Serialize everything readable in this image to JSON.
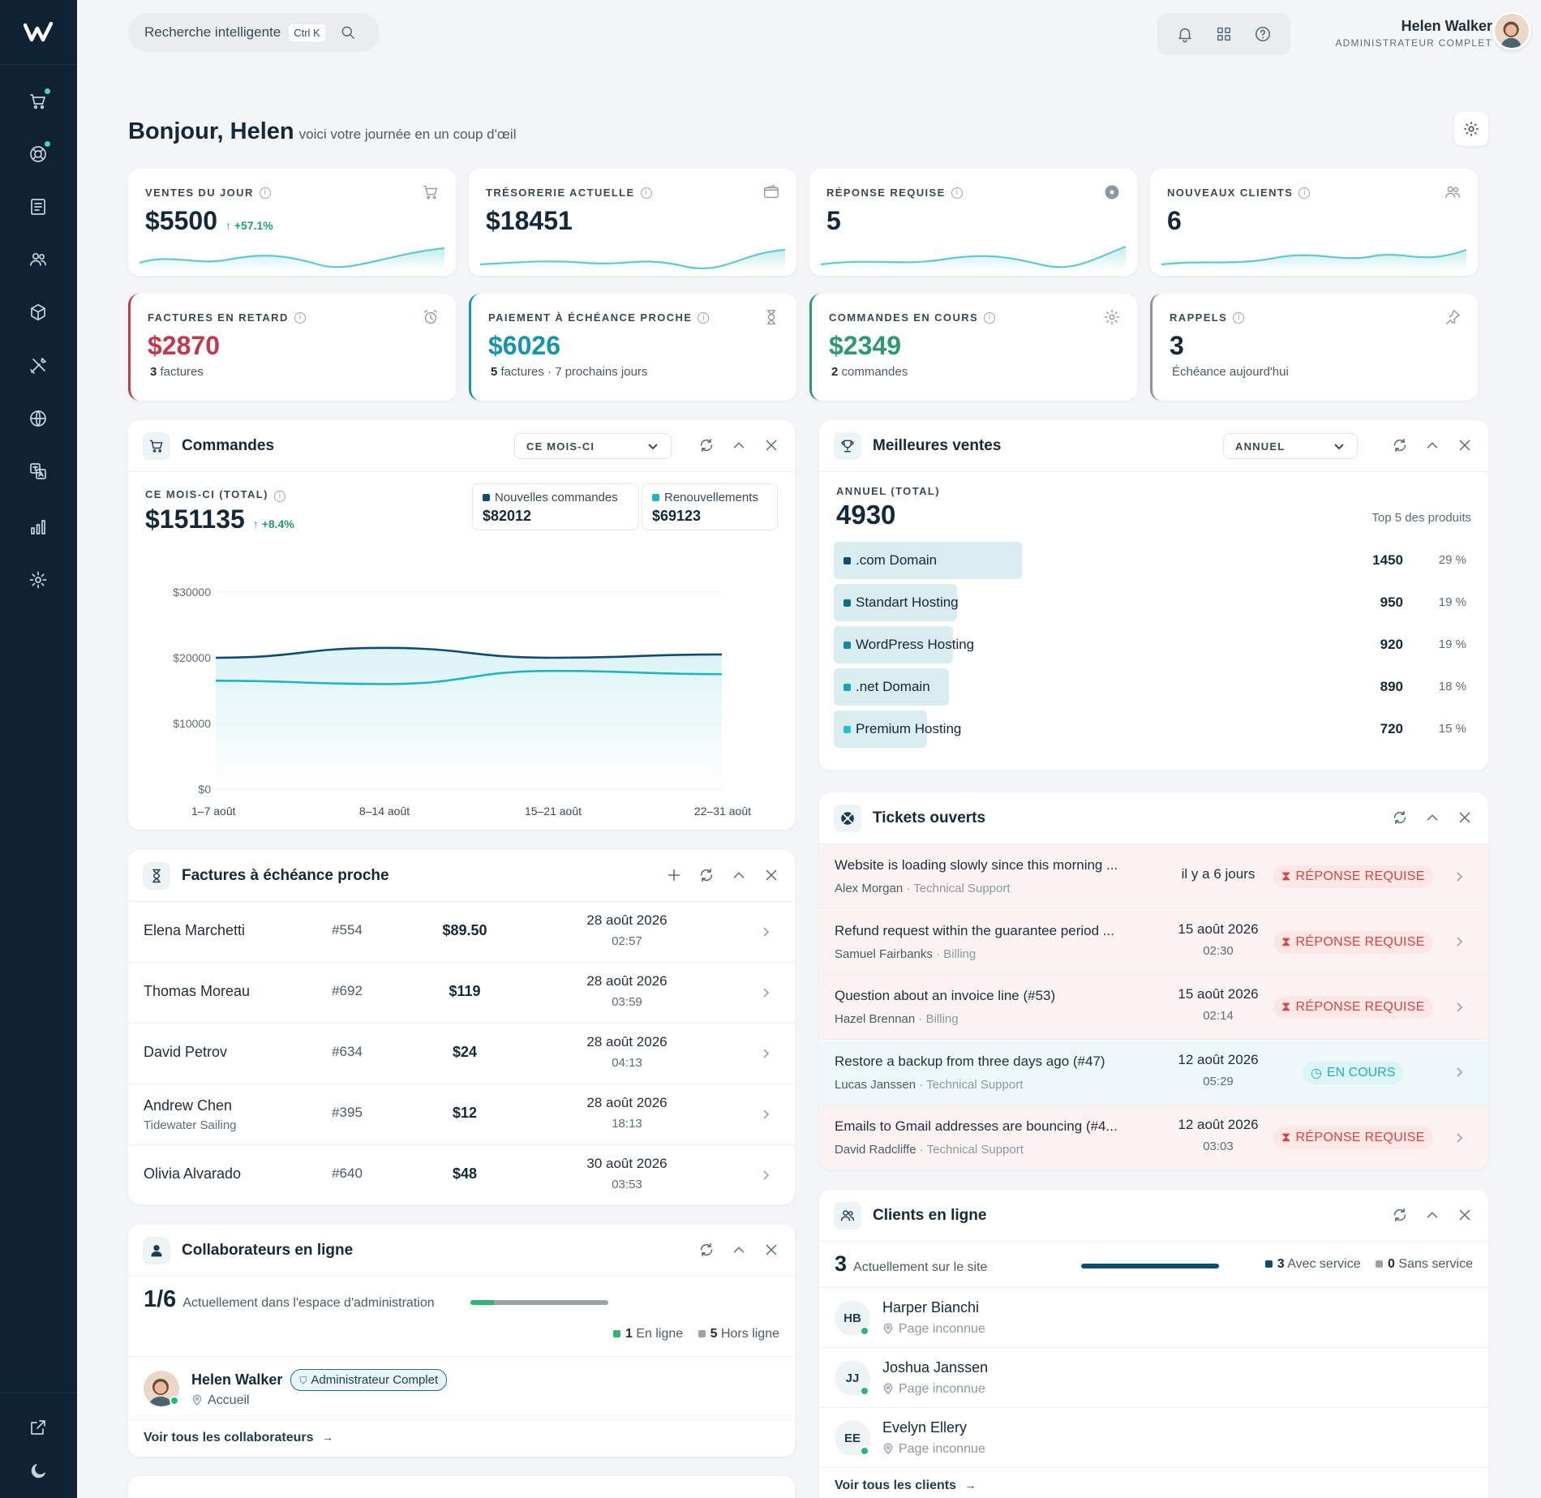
{
  "topbar": {
    "search_label": "Recherche intelligente",
    "search_shortcut": "Ctrl K",
    "user_name": "Helen Walker",
    "user_role": "ADMINISTRATEUR COMPLET"
  },
  "greeting": {
    "title": "Bonjour, Helen",
    "subtitle": "voici votre journée en un coup d'œil"
  },
  "kpis": [
    {
      "label": "VENTES DU JOUR",
      "value": "$5500",
      "delta": "↑ +57.1%",
      "icon": "cart-icon"
    },
    {
      "label": "TRÉSORERIE ACTUELLE",
      "value": "$18451",
      "icon": "wallet-icon"
    },
    {
      "label": "RÉPONSE REQUISE",
      "value": "5",
      "icon": "lifebuoy-icon"
    },
    {
      "label": "NOUVEAUX CLIENTS",
      "value": "6",
      "icon": "users-icon"
    }
  ],
  "kpis2": [
    {
      "label": "FACTURES EN RETARD",
      "value": "$2870",
      "sub_count": "3",
      "sub_text": " factures",
      "color": "#c0394b",
      "icon": "alarm-icon"
    },
    {
      "label": "PAIEMENT À ÉCHÉANCE PROCHE",
      "value": "$6026",
      "sub_count": "5",
      "sub_text": " factures · 7 prochains jours",
      "color": "#1596a8",
      "icon": "hourglass-icon"
    },
    {
      "label": "COMMANDES EN COURS",
      "value": "$2349",
      "sub_count": "2",
      "sub_text": " commandes",
      "color": "#2b9a6e",
      "icon": "gear-icon"
    },
    {
      "label": "RAPPELS",
      "value": "3",
      "sub_count": "",
      "sub_text": "Échéance aujourd'hui",
      "color": "#8a97a1",
      "icon": "pin-icon"
    }
  ],
  "orders": {
    "title": "Commandes",
    "period": "CE MOIS-CI",
    "total_label": "CE MOIS-CI (TOTAL)",
    "total": "$151135",
    "delta": "↑ +8.4%",
    "legend": [
      {
        "name": "Nouvelles commandes",
        "value": "$82012",
        "color": "#0f4c6e"
      },
      {
        "name": "Renouvellements",
        "value": "$69123",
        "color": "#22b5c0"
      }
    ]
  },
  "chart_data": {
    "type": "line",
    "x": [
      "1–7 août",
      "8–14 août",
      "15–21 août",
      "22–31 août"
    ],
    "yticks": [
      "$30000",
      "$20000",
      "$10000",
      "$0"
    ],
    "ylim": [
      0,
      30000
    ],
    "series": [
      {
        "name": "Nouvelles commandes",
        "values": [
          20000,
          21500,
          20000,
          20500
        ],
        "color": "#0f4c6e"
      },
      {
        "name": "Renouvellements",
        "values": [
          16500,
          16000,
          18000,
          17500
        ],
        "color": "#22b5c0"
      }
    ]
  },
  "bestsellers": {
    "title": "Meilleures ventes",
    "period": "ANNUEL",
    "total_label": "ANNUEL (TOTAL)",
    "total": "4930",
    "top_label": "Top 5 des produits",
    "items": [
      {
        "name": ".com Domain",
        "value": "1450",
        "pct": "29 %",
        "share": 1.0,
        "color": "#0f4c6e"
      },
      {
        "name": "Standart Hosting",
        "value": "950",
        "pct": "19 %",
        "share": 0.655,
        "color": "#146985"
      },
      {
        "name": "WordPress Hosting",
        "value": "920",
        "pct": "19 %",
        "share": 0.634,
        "color": "#1889a0"
      },
      {
        "name": ".net Domain",
        "value": "890",
        "pct": "18 %",
        "share": 0.614,
        "color": "#1ea3b5"
      },
      {
        "name": "Premium Hosting",
        "value": "720",
        "pct": "15 %",
        "share": 0.497,
        "color": "#28c0c9"
      }
    ]
  },
  "tickets": {
    "title": "Tickets ouverts",
    "items": [
      {
        "subject": "Website is loading slowly since this morning ...",
        "author": "Alex Morgan",
        "dept": " · Technical Support",
        "date": "il y a 6 jours",
        "time": "",
        "status": "RÉPONSE REQUISE",
        "kind": "red"
      },
      {
        "subject": "Refund request within the guarantee period ...",
        "author": "Samuel Fairbanks",
        "dept": " · Billing",
        "date": "15 août 2026",
        "time": "02:30",
        "status": "RÉPONSE REQUISE",
        "kind": "red"
      },
      {
        "subject": "Question about an invoice line (#53)",
        "author": "Hazel Brennan",
        "dept": " · Billing",
        "date": "15 août 2026",
        "time": "02:14",
        "status": "RÉPONSE REQUISE",
        "kind": "red"
      },
      {
        "subject": "Restore a backup from three days ago (#47)",
        "author": "Lucas Janssen",
        "dept": " · Technical Support",
        "date": "12 août 2026",
        "time": "05:29",
        "status": "EN COURS",
        "kind": "teal"
      },
      {
        "subject": "Emails to Gmail addresses are bouncing (#4...",
        "author": "David Radcliffe",
        "dept": " · Technical Support",
        "date": "12 août 2026",
        "time": "03:03",
        "status": "RÉPONSE REQUISE",
        "kind": "red"
      }
    ]
  },
  "invoices": {
    "title": "Factures à échéance proche",
    "items": [
      {
        "name": "Elena Marchetti",
        "company": "",
        "num": "#554",
        "amount": "$89.50",
        "date": "28 août 2026",
        "time": "02:57"
      },
      {
        "name": "Thomas Moreau",
        "company": "",
        "num": "#692",
        "amount": "$119",
        "date": "28 août 2026",
        "time": "03:59"
      },
      {
        "name": "David Petrov",
        "company": "",
        "num": "#634",
        "amount": "$24",
        "date": "28 août 2026",
        "time": "04:13"
      },
      {
        "name": "Andrew Chen",
        "company": "Tidewater Sailing",
        "num": "#395",
        "amount": "$12",
        "date": "28 août 2026",
        "time": "18:13"
      },
      {
        "name": "Olivia Alvarado",
        "company": "",
        "num": "#640",
        "amount": "$48",
        "date": "30 août 2026",
        "time": "03:53"
      }
    ]
  },
  "collab": {
    "title": "Collaborateurs en ligne",
    "count": "1/6",
    "count_label": "Actuellement dans l'espace d'administration",
    "online_share": 0.17,
    "online_count": "1",
    "online_label": "En ligne",
    "offline_count": "5",
    "offline_label": "Hors ligne",
    "member_name": "Helen Walker",
    "member_role": "Administrateur Complet",
    "member_page": "Accueil",
    "link": "Voir tous les collaborateurs"
  },
  "clients": {
    "title": "Clients en ligne",
    "count": "3",
    "count_label": "Actuellement sur le site",
    "with_count": "3",
    "with_label": "Avec service",
    "without_count": "0",
    "without_label": "Sans service",
    "items": [
      {
        "initials": "HB",
        "name": "Harper Bianchi",
        "page": "Page inconnue"
      },
      {
        "initials": "JJ",
        "name": "Joshua Janssen",
        "page": "Page inconnue"
      },
      {
        "initials": "EE",
        "name": "Evelyn Ellery",
        "page": "Page inconnue"
      }
    ],
    "link": "Voir tous les clients"
  }
}
